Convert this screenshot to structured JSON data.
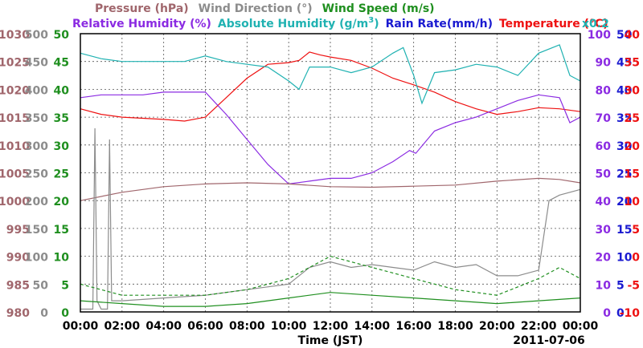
{
  "chart_data": {
    "type": "line",
    "date_label": "2011-07-06",
    "xlabel": "Time (JST)",
    "x_ticks": [
      "00:00",
      "02:00",
      "04:00",
      "06:00",
      "08:00",
      "10:00",
      "12:00",
      "14:00",
      "16:00",
      "18:00",
      "20:00",
      "22:00",
      "00:00"
    ],
    "x_range_hours": [
      0,
      24
    ],
    "legend": {
      "row1": [
        {
          "label": "Pressure (hPa)",
          "color": "#a0666c"
        },
        {
          "label": "Wind Direction (°)",
          "color": "#8c8c8c"
        },
        {
          "label": "Wind Speed (m/s)",
          "color": "#1f8f1f"
        }
      ],
      "row2": [
        {
          "label": "Relative Humidity (%)",
          "color": "#8b2be2"
        },
        {
          "label": "Absolute Humidity (g/m",
          "sup": "3",
          "tail": ")",
          "color": "#20b2b2",
          "suffix": "x0.2"
        },
        {
          "label": "Rain Rate(mm/h)",
          "color": "#1a1ad0"
        },
        {
          "label": "Temperature (°C)",
          "color": "#ee1111"
        }
      ]
    },
    "axes": {
      "pressure": {
        "ticks": [
          "1030",
          "1025",
          "1020",
          "1015",
          "1010",
          "1005",
          "1000",
          "995",
          "990",
          "985",
          "980"
        ],
        "range": [
          980,
          1030
        ],
        "color": "#a0666c"
      },
      "wind_direction": {
        "ticks": [
          "500",
          "450",
          "400",
          "350",
          "300",
          "250",
          "200",
          "150",
          "100",
          "50",
          "0"
        ],
        "range": [
          0,
          500
        ],
        "color": "#8c8c8c"
      },
      "wind_speed": {
        "ticks": [
          "50",
          "45",
          "40",
          "35",
          "30",
          "25",
          "20",
          "15",
          "10",
          "5",
          "0"
        ],
        "range": [
          0,
          50
        ],
        "color": "#1f8f1f"
      },
      "humidity": {
        "ticks": [
          "100",
          "90",
          "80",
          "70",
          "60",
          "50",
          "40",
          "30",
          "20",
          "10",
          "0"
        ],
        "range": [
          0,
          100
        ],
        "color": "#8b2be2"
      },
      "rain_rate": {
        "ticks": [
          "50",
          "45",
          "40",
          "35",
          "30",
          "25",
          "20",
          "15",
          "10",
          "5",
          "0"
        ],
        "range": [
          0,
          50
        ],
        "color": "#1a1ad0"
      },
      "temperature": {
        "ticks": [
          "40",
          "35",
          "30",
          "25",
          "20",
          "15",
          "10",
          "5",
          "0",
          "-5",
          "-10"
        ],
        "range": [
          -10,
          40
        ],
        "color": "#ee1111"
      }
    },
    "grid": true,
    "series": [
      {
        "name": "Temperature (°C)",
        "axis": "temperature",
        "color": "#ee1111",
        "x": [
          0,
          1,
          2,
          3,
          4,
          5,
          6,
          7,
          8,
          9,
          10,
          10.5,
          11,
          11.5,
          12,
          13,
          14,
          15,
          16,
          17,
          18,
          19,
          20,
          21,
          22,
          23,
          24
        ],
        "y": [
          26.5,
          25.5,
          25.0,
          24.8,
          24.6,
          24.3,
          25.0,
          28.5,
          32.0,
          34.5,
          34.8,
          35.2,
          36.7,
          36.2,
          35.8,
          35.2,
          33.8,
          32.0,
          30.8,
          29.5,
          27.8,
          26.5,
          25.5,
          26.0,
          26.7,
          26.5,
          26.0
        ]
      },
      {
        "name": "Relative Humidity (%)",
        "axis": "humidity",
        "color": "#8b2be2",
        "x": [
          0,
          1,
          2,
          3,
          4,
          5,
          6,
          7,
          8,
          9,
          10,
          11,
          12,
          13,
          14,
          15,
          15.8,
          16.1,
          17,
          18,
          19,
          20,
          21,
          22,
          23,
          23.5,
          24
        ],
        "y": [
          77,
          78,
          78,
          78,
          79,
          79,
          79,
          71,
          62,
          53,
          46,
          47,
          48,
          48,
          50,
          54,
          58,
          57,
          65,
          68,
          70,
          73,
          76,
          78,
          77,
          68,
          70
        ]
      },
      {
        "name": "Absolute Humidity (g/m3)",
        "axis": "humidity",
        "color": "#20b2b2",
        "x": [
          0,
          1,
          2,
          3,
          4,
          5,
          6,
          7,
          8,
          9,
          10,
          10.5,
          11,
          12,
          13,
          14,
          15,
          15.5,
          16,
          16.4,
          17,
          18,
          19,
          20,
          21,
          22,
          23,
          23.5,
          24
        ],
        "y": [
          93,
          91,
          90,
          90,
          90,
          90,
          92,
          90,
          89,
          88,
          83,
          80,
          88,
          88,
          86,
          88,
          93,
          95,
          85,
          75,
          86,
          87,
          89,
          88,
          85,
          93,
          96,
          85,
          83
        ]
      },
      {
        "name": "Pressure (hPa)",
        "axis": "pressure",
        "color": "#a0666c",
        "x": [
          0,
          2,
          4,
          6,
          8,
          10,
          12,
          14,
          16,
          18,
          20,
          22,
          23,
          24
        ],
        "y": [
          1000.0,
          1001.5,
          1002.5,
          1003.0,
          1003.2,
          1003.0,
          1002.5,
          1002.4,
          1002.6,
          1002.8,
          1003.5,
          1004.0,
          1003.8,
          1003.2
        ]
      },
      {
        "name": "Wind Direction (°)",
        "axis": "wind_direction",
        "color": "#8c8c8c",
        "x": [
          0,
          0.6,
          0.7,
          0.8,
          1.0,
          1.3,
          1.4,
          1.5,
          2,
          4,
          6,
          8,
          10,
          11,
          12,
          13,
          14,
          15,
          16,
          17,
          18,
          19,
          20,
          21,
          22,
          22.5,
          23,
          24
        ],
        "y": [
          5,
          5,
          330,
          20,
          5,
          5,
          310,
          20,
          20,
          25,
          30,
          40,
          50,
          80,
          90,
          80,
          85,
          80,
          75,
          90,
          80,
          85,
          65,
          65,
          75,
          200,
          210,
          220
        ]
      },
      {
        "name": "Wind Speed (m/s)",
        "axis": "wind_speed",
        "color": "#1f8f1f",
        "x": [
          0,
          2,
          4,
          6,
          8,
          10,
          12,
          14,
          16,
          18,
          20,
          22,
          24
        ],
        "y": [
          2.0,
          1.5,
          1.0,
          1.0,
          1.5,
          2.5,
          3.5,
          3.0,
          2.5,
          2.0,
          1.5,
          2.0,
          2.5
        ]
      },
      {
        "name": "Wind Speed (m/s) gust",
        "axis": "wind_speed",
        "color": "#1f8f1f",
        "dashed": true,
        "x": [
          0,
          2,
          4,
          6,
          8,
          10,
          11,
          12,
          13,
          14,
          15,
          16,
          18,
          20,
          22,
          23,
          24
        ],
        "y": [
          5,
          3,
          3,
          3,
          4,
          6,
          8,
          10,
          9,
          8,
          7,
          6,
          4,
          3,
          6,
          8,
          6
        ]
      }
    ]
  }
}
